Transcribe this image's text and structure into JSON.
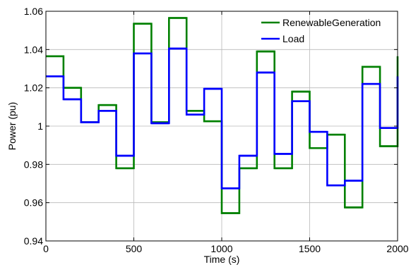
{
  "chart_data": {
    "type": "line",
    "title": "",
    "xlabel": "Time (s)",
    "ylabel": "Power (pu)",
    "xlim": [
      0,
      2000
    ],
    "ylim": [
      0.94,
      1.06
    ],
    "xticks": [
      0,
      500,
      1000,
      1500,
      2000
    ],
    "xtick_labels": [
      "0",
      "500",
      "1000",
      "1500",
      "2000"
    ],
    "yticks": [
      0.94,
      0.96,
      0.98,
      1.0,
      1.02,
      1.04,
      1.06
    ],
    "ytick_labels": [
      "0.94",
      "0.96",
      "0.98",
      "1",
      "1.02",
      "1.04",
      "1.06"
    ],
    "grid": true,
    "legend_position": "top-right",
    "step_starts": [
      0,
      100,
      200,
      300,
      400,
      500,
      600,
      700,
      800,
      900,
      1000,
      1100,
      1200,
      1300,
      1400,
      1500,
      1600,
      1700,
      1800,
      1900,
      2000
    ],
    "series": [
      {
        "name": "RenewableGeneration",
        "color": "#008000",
        "values": [
          1.0365,
          1.02,
          1.002,
          1.011,
          0.978,
          1.0535,
          1.002,
          1.0565,
          1.008,
          1.0025,
          0.9545,
          0.978,
          1.039,
          0.978,
          1.018,
          0.9885,
          0.9955,
          0.9575,
          1.031,
          0.9895,
          1.0365
        ]
      },
      {
        "name": "Load",
        "color": "#0000FF",
        "values": [
          1.026,
          1.014,
          1.002,
          1.008,
          0.9845,
          1.038,
          1.0015,
          1.0405,
          1.006,
          1.0195,
          0.9675,
          0.9845,
          1.028,
          0.9855,
          1.013,
          0.997,
          0.969,
          0.9715,
          1.022,
          0.999,
          1.026
        ]
      }
    ]
  }
}
